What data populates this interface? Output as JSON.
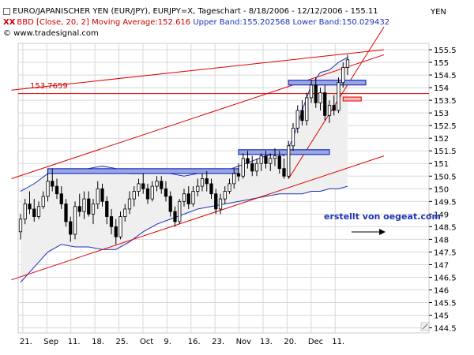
{
  "header": {
    "line1": "EURO/JAPANISCHER YEN (EUR/JPY), EURJPY=X, Tageschart - 8/18/2006 - 12/12/2006 - 155.11",
    "line2_prefix": "BBD [Close, 20, 2]",
    "line2_ma": "Moving Average:152.616",
    "line2_ub": "Upper Band:155.202568",
    "line2_lb": "Lower Band:150.029432",
    "line3": "© www.tradesignal.com",
    "currency": "YEN"
  },
  "annotations": {
    "level_label": "153.7659",
    "credit": "erstellt von oegeat.com"
  },
  "colors": {
    "candle_up": "#ffffff",
    "candle_down": "#000000",
    "band": "#1c32b4",
    "trendline": "#e00000",
    "zone_fill": "#9aa6e8",
    "zone_stroke": "#1c32b4",
    "grid": "#d8d8d8"
  },
  "chart_data": {
    "type": "candlestick",
    "ylim": [
      144.3,
      155.75
    ],
    "y_ticks": [
      "144.5",
      "145",
      "145.5",
      "146",
      "146.5",
      "147",
      "147.5",
      "148",
      "148.5",
      "149",
      "149.5",
      "150",
      "150.5",
      "151",
      "151.5",
      "152",
      "152.5",
      "153",
      "153.5",
      "154",
      "154.5",
      "155",
      "155.5"
    ],
    "x_ticks": [
      "21.",
      "Sep",
      "11.",
      "18.",
      "25.",
      "Oct",
      "9.",
      "16.",
      "23.",
      "Nov",
      "13.",
      "20.",
      "Dec",
      "11."
    ],
    "candles": [
      {
        "o": 148.3,
        "h": 149.0,
        "l": 148.0,
        "c": 148.8
      },
      {
        "o": 148.8,
        "h": 149.6,
        "l": 148.6,
        "c": 149.4
      },
      {
        "o": 149.4,
        "h": 149.9,
        "l": 149.0,
        "c": 149.2
      },
      {
        "o": 149.2,
        "h": 149.6,
        "l": 148.7,
        "c": 148.9
      },
      {
        "o": 148.9,
        "h": 149.5,
        "l": 148.8,
        "c": 149.3
      },
      {
        "o": 149.3,
        "h": 149.9,
        "l": 149.2,
        "c": 149.7
      },
      {
        "o": 149.7,
        "h": 150.6,
        "l": 149.5,
        "c": 150.3
      },
      {
        "o": 150.3,
        "h": 150.8,
        "l": 149.9,
        "c": 150.1
      },
      {
        "o": 150.1,
        "h": 150.4,
        "l": 149.6,
        "c": 149.8
      },
      {
        "o": 149.8,
        "h": 150.1,
        "l": 149.2,
        "c": 149.4
      },
      {
        "o": 149.4,
        "h": 149.6,
        "l": 148.5,
        "c": 148.7
      },
      {
        "o": 148.7,
        "h": 148.9,
        "l": 147.9,
        "c": 148.2
      },
      {
        "o": 148.2,
        "h": 149.5,
        "l": 148.0,
        "c": 149.3
      },
      {
        "o": 149.3,
        "h": 149.8,
        "l": 148.9,
        "c": 149.1
      },
      {
        "o": 149.1,
        "h": 149.9,
        "l": 148.8,
        "c": 149.6
      },
      {
        "o": 149.6,
        "h": 149.9,
        "l": 148.9,
        "c": 149.0
      },
      {
        "o": 149.0,
        "h": 149.6,
        "l": 148.6,
        "c": 149.4
      },
      {
        "o": 149.4,
        "h": 150.3,
        "l": 149.2,
        "c": 150.0
      },
      {
        "o": 150.0,
        "h": 150.2,
        "l": 149.3,
        "c": 149.5
      },
      {
        "o": 149.5,
        "h": 149.7,
        "l": 148.6,
        "c": 148.9
      },
      {
        "o": 148.9,
        "h": 149.2,
        "l": 148.2,
        "c": 148.5
      },
      {
        "o": 148.5,
        "h": 148.8,
        "l": 147.8,
        "c": 148.1
      },
      {
        "o": 148.1,
        "h": 149.1,
        "l": 148.0,
        "c": 148.9
      },
      {
        "o": 148.9,
        "h": 149.4,
        "l": 148.7,
        "c": 149.2
      },
      {
        "o": 149.2,
        "h": 149.9,
        "l": 149.0,
        "c": 149.6
      },
      {
        "o": 149.6,
        "h": 150.1,
        "l": 149.3,
        "c": 149.9
      },
      {
        "o": 149.9,
        "h": 150.4,
        "l": 149.7,
        "c": 150.2
      },
      {
        "o": 150.2,
        "h": 150.6,
        "l": 149.8,
        "c": 150.0
      },
      {
        "o": 150.0,
        "h": 150.2,
        "l": 149.4,
        "c": 149.6
      },
      {
        "o": 149.6,
        "h": 150.3,
        "l": 149.5,
        "c": 150.1
      },
      {
        "o": 150.1,
        "h": 150.5,
        "l": 149.9,
        "c": 150.3
      },
      {
        "o": 150.3,
        "h": 150.5,
        "l": 149.8,
        "c": 150.0
      },
      {
        "o": 150.0,
        "h": 150.3,
        "l": 149.5,
        "c": 149.7
      },
      {
        "o": 149.7,
        "h": 149.9,
        "l": 148.9,
        "c": 149.1
      },
      {
        "o": 149.1,
        "h": 149.3,
        "l": 148.5,
        "c": 148.7
      },
      {
        "o": 148.7,
        "h": 149.6,
        "l": 148.6,
        "c": 149.5
      },
      {
        "o": 149.5,
        "h": 150.0,
        "l": 149.3,
        "c": 149.8
      },
      {
        "o": 149.8,
        "h": 150.1,
        "l": 149.2,
        "c": 149.4
      },
      {
        "o": 149.4,
        "h": 150.1,
        "l": 149.3,
        "c": 149.9
      },
      {
        "o": 149.9,
        "h": 150.4,
        "l": 149.7,
        "c": 150.1
      },
      {
        "o": 150.1,
        "h": 150.6,
        "l": 149.9,
        "c": 150.4
      },
      {
        "o": 150.4,
        "h": 150.7,
        "l": 149.9,
        "c": 150.2
      },
      {
        "o": 150.2,
        "h": 150.4,
        "l": 149.6,
        "c": 149.8
      },
      {
        "o": 149.8,
        "h": 150.0,
        "l": 149.0,
        "c": 149.2
      },
      {
        "o": 149.2,
        "h": 149.8,
        "l": 149.0,
        "c": 149.6
      },
      {
        "o": 149.6,
        "h": 150.1,
        "l": 149.4,
        "c": 149.9
      },
      {
        "o": 149.9,
        "h": 150.4,
        "l": 149.8,
        "c": 150.2
      },
      {
        "o": 150.2,
        "h": 150.8,
        "l": 150.0,
        "c": 150.6
      },
      {
        "o": 150.6,
        "h": 151.0,
        "l": 150.3,
        "c": 150.5
      },
      {
        "o": 150.5,
        "h": 151.4,
        "l": 150.4,
        "c": 151.2
      },
      {
        "o": 151.2,
        "h": 151.5,
        "l": 150.8,
        "c": 151.0
      },
      {
        "o": 151.0,
        "h": 151.3,
        "l": 150.5,
        "c": 150.7
      },
      {
        "o": 150.7,
        "h": 151.2,
        "l": 150.5,
        "c": 151.0
      },
      {
        "o": 151.0,
        "h": 151.4,
        "l": 150.7,
        "c": 151.3
      },
      {
        "o": 151.3,
        "h": 151.5,
        "l": 150.8,
        "c": 151.0
      },
      {
        "o": 151.0,
        "h": 151.4,
        "l": 150.7,
        "c": 151.2
      },
      {
        "o": 151.2,
        "h": 151.6,
        "l": 150.9,
        "c": 151.3
      },
      {
        "o": 151.3,
        "h": 151.5,
        "l": 150.6,
        "c": 150.8
      },
      {
        "o": 150.8,
        "h": 151.2,
        "l": 150.4,
        "c": 150.5
      },
      {
        "o": 150.5,
        "h": 151.9,
        "l": 150.4,
        "c": 151.7
      },
      {
        "o": 151.7,
        "h": 152.6,
        "l": 151.5,
        "c": 152.4
      },
      {
        "o": 152.4,
        "h": 153.3,
        "l": 152.2,
        "c": 153.1
      },
      {
        "o": 153.1,
        "h": 153.5,
        "l": 152.5,
        "c": 152.7
      },
      {
        "o": 152.7,
        "h": 153.8,
        "l": 152.5,
        "c": 153.6
      },
      {
        "o": 153.6,
        "h": 154.3,
        "l": 153.4,
        "c": 154.1
      },
      {
        "o": 154.1,
        "h": 154.4,
        "l": 153.2,
        "c": 153.4
      },
      {
        "o": 153.4,
        "h": 154.0,
        "l": 153.1,
        "c": 153.8
      },
      {
        "o": 153.8,
        "h": 154.1,
        "l": 152.7,
        "c": 152.9
      },
      {
        "o": 152.9,
        "h": 153.5,
        "l": 152.6,
        "c": 153.3
      },
      {
        "o": 153.3,
        "h": 153.7,
        "l": 152.9,
        "c": 153.1
      },
      {
        "o": 153.1,
        "h": 154.4,
        "l": 153.0,
        "c": 154.2
      },
      {
        "o": 154.2,
        "h": 155.0,
        "l": 154.0,
        "c": 154.8
      },
      {
        "o": 154.8,
        "h": 155.3,
        "l": 154.5,
        "c": 155.1
      }
    ],
    "x_index_range": [
      0,
      72
    ],
    "upper_band": [
      [
        0,
        149.9
      ],
      [
        3,
        150.2
      ],
      [
        6,
        150.6
      ],
      [
        9,
        150.7
      ],
      [
        12,
        150.7
      ],
      [
        15,
        150.8
      ],
      [
        18,
        150.9
      ],
      [
        21,
        150.8
      ],
      [
        24,
        150.6
      ],
      [
        27,
        150.6
      ],
      [
        30,
        150.7
      ],
      [
        33,
        150.6
      ],
      [
        36,
        150.5
      ],
      [
        39,
        150.6
      ],
      [
        42,
        150.7
      ],
      [
        45,
        150.7
      ],
      [
        48,
        150.9
      ],
      [
        51,
        151.1
      ],
      [
        54,
        151.3
      ],
      [
        57,
        151.4
      ],
      [
        58,
        151.3
      ],
      [
        60,
        152.0
      ],
      [
        62,
        153.1
      ],
      [
        64,
        154.1
      ],
      [
        66,
        154.6
      ],
      [
        68,
        154.7
      ],
      [
        70,
        155.0
      ],
      [
        72,
        155.2
      ]
    ],
    "lower_band": [
      [
        0,
        146.3
      ],
      [
        3,
        146.9
      ],
      [
        6,
        147.5
      ],
      [
        9,
        147.8
      ],
      [
        12,
        147.7
      ],
      [
        15,
        147.7
      ],
      [
        18,
        147.6
      ],
      [
        21,
        147.6
      ],
      [
        24,
        147.9
      ],
      [
        27,
        148.3
      ],
      [
        30,
        148.6
      ],
      [
        33,
        148.8
      ],
      [
        36,
        149.0
      ],
      [
        39,
        149.2
      ],
      [
        42,
        149.3
      ],
      [
        45,
        149.4
      ],
      [
        48,
        149.5
      ],
      [
        51,
        149.6
      ],
      [
        54,
        149.7
      ],
      [
        57,
        149.8
      ],
      [
        60,
        149.8
      ],
      [
        62,
        149.8
      ],
      [
        64,
        149.9
      ],
      [
        66,
        149.9
      ],
      [
        68,
        150.0
      ],
      [
        70,
        150.0
      ],
      [
        72,
        150.1
      ]
    ],
    "trendlines": [
      {
        "name": "lower-channel",
        "p1": [
          -2,
          146.4
        ],
        "p2": [
          80,
          151.3
        ]
      },
      {
        "name": "upper-channel",
        "p1": [
          -2,
          150.4
        ],
        "p2": [
          80,
          155.3
        ]
      },
      {
        "name": "top-line",
        "p1": [
          -2,
          153.9
        ],
        "p2": [
          80,
          155.5
        ]
      },
      {
        "name": "steep-line",
        "p1": [
          59,
          150.4
        ],
        "p2": [
          80,
          156.4
        ]
      }
    ],
    "horizontal_level": 153.7659,
    "zones": [
      {
        "x1": 6,
        "x2": 48,
        "y": 150.7
      },
      {
        "x1": 48,
        "x2": 68,
        "y": 151.45
      },
      {
        "x1": 59,
        "x2": 76,
        "y": 154.2
      }
    ],
    "red_marker": {
      "x1": 71,
      "x2": 75,
      "y": 153.55
    }
  }
}
